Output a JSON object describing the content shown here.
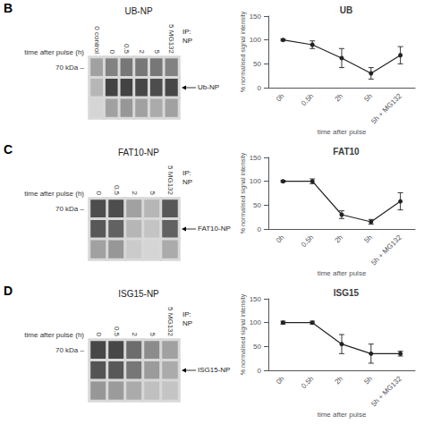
{
  "chart_data": [
    {
      "type": "heatmap",
      "title": "UB-NP",
      "categories": [
        "0 control",
        "0",
        "0.5",
        "2",
        "5",
        "5 MG132"
      ],
      "y_categories": [
        "70 kDa –",
        null,
        null
      ],
      "cells": [
        [
          0.45,
          0.6,
          0.65,
          0.65,
          0.65,
          0.6
        ],
        [
          0.35,
          0.9,
          0.9,
          0.88,
          0.85,
          0.88
        ],
        [
          0.2,
          0.45,
          0.5,
          0.45,
          0.4,
          0.45
        ]
      ],
      "zlim": [
        0,
        1
      ],
      "xlabel": "time after pulse (h)",
      "annotations": [
        "B",
        "IP:\nNP",
        "Ub-NP"
      ]
    },
    {
      "type": "line",
      "title": "UB",
      "categories": [
        "0h",
        "0.5h",
        "2h",
        "5h",
        "5h + MG132"
      ],
      "values": [
        100,
        90,
        62,
        30,
        68
      ],
      "errors": [
        2,
        8,
        20,
        12,
        18
      ],
      "ylim": [
        0,
        150
      ],
      "yticks": [
        0,
        50,
        100,
        150
      ],
      "xlabel": "time after pulse",
      "ylabel": "% normalised signal intensity",
      "color": "#222222",
      "marker": "circle",
      "grid": false
    },
    {
      "type": "heatmap",
      "title": "FAT10-NP",
      "categories": [
        "0",
        "0.5",
        "2",
        "5",
        "5 MG132"
      ],
      "y_categories": [
        "70 kDa –",
        null,
        null
      ],
      "cells": [
        [
          0.85,
          0.85,
          0.45,
          0.35,
          0.8
        ],
        [
          0.8,
          0.75,
          0.35,
          0.28,
          0.75
        ],
        [
          0.45,
          0.5,
          0.25,
          0.2,
          0.4
        ]
      ],
      "zlim": [
        0,
        1
      ],
      "xlabel": "time after pulse (h)",
      "annotations": [
        "C",
        "IP:\nNP",
        "FAT10-NP"
      ]
    },
    {
      "type": "line",
      "title": "FAT10",
      "categories": [
        "0h",
        "0.5h",
        "2h",
        "5h",
        "5h + MG132"
      ],
      "values": [
        100,
        100,
        30,
        15,
        58
      ],
      "errors": [
        2,
        5,
        8,
        5,
        18
      ],
      "ylim": [
        0,
        150
      ],
      "yticks": [
        0,
        50,
        100,
        150
      ],
      "xlabel": "time after pulse",
      "ylabel": "% normalised signal intensity",
      "color": "#222222",
      "marker": "circle",
      "grid": false
    },
    {
      "type": "heatmap",
      "title": "ISG15-NP",
      "categories": [
        "0",
        "0.5",
        "2",
        "5",
        "5 MG132"
      ],
      "y_categories": [
        "70 kDa –",
        null,
        null
      ],
      "cells": [
        [
          0.88,
          0.88,
          0.7,
          0.55,
          0.45
        ],
        [
          0.82,
          0.8,
          0.65,
          0.48,
          0.4
        ],
        [
          0.5,
          0.48,
          0.4,
          0.3,
          0.28
        ]
      ],
      "zlim": [
        0,
        1
      ],
      "xlabel": "time after pulse (h)",
      "annotations": [
        "D",
        "IP:\nNP",
        "ISG15-NP"
      ]
    },
    {
      "type": "line",
      "title": "ISG15",
      "categories": [
        "0h",
        "0.5h",
        "2h",
        "5h",
        "5h + MG132"
      ],
      "values": [
        100,
        100,
        55,
        35,
        35
      ],
      "errors": [
        3,
        3,
        20,
        20,
        5
      ],
      "ylim": [
        0,
        150
      ],
      "yticks": [
        0,
        50,
        100,
        150
      ],
      "xlabel": "time after pulse",
      "ylabel": "% normalised signal intensity",
      "color": "#222222",
      "marker": "circle",
      "grid": false
    }
  ]
}
